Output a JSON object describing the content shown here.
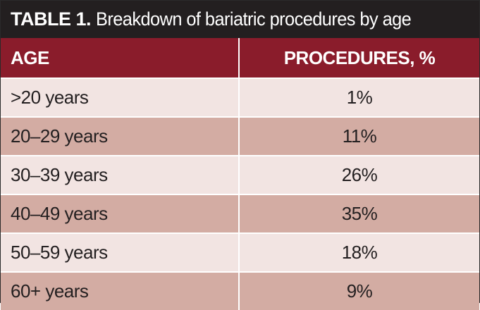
{
  "title": {
    "label": "TABLE 1.",
    "caption": "Breakdown of bariatric procedures by age"
  },
  "headers": {
    "age": "AGE",
    "procedures": "PROCEDURES, %"
  },
  "rows": [
    {
      "age": ">20 years",
      "procedures": "1%"
    },
    {
      "age": "20–29 years",
      "procedures": "11%"
    },
    {
      "age": "30–39 years",
      "procedures": "26%"
    },
    {
      "age": "40–49 years",
      "procedures": "35%"
    },
    {
      "age": "50–59 years",
      "procedures": "18%"
    },
    {
      "age": "60+ years",
      "procedures": "9%"
    }
  ],
  "colors": {
    "title_bg": "#231f20",
    "header_bg": "#8a1c2b",
    "row_light": "#f2e4e2",
    "row_dark": "#d3aca3"
  }
}
